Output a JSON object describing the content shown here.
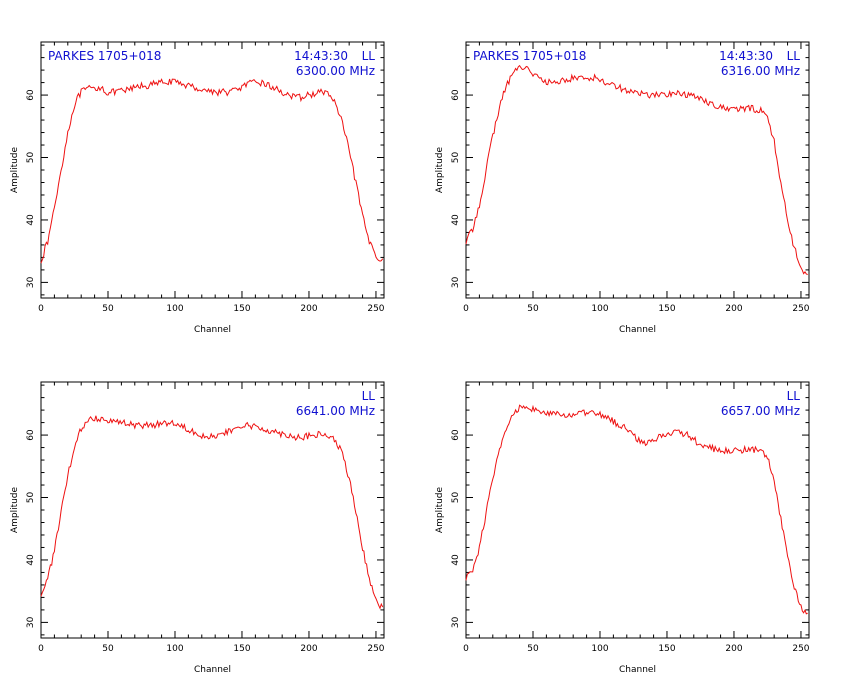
{
  "chart_data": [
    {
      "type": "line",
      "source": "PARKES 1705+018",
      "time": "14:43:30",
      "polarization": "LL",
      "frequency": "6300.00 MHz",
      "xlabel": "Channel",
      "ylabel": "Amplitude",
      "xlim": [
        0,
        256
      ],
      "ylim": [
        27.5,
        68.5
      ],
      "xticks": [
        0,
        50,
        100,
        150,
        200,
        250
      ],
      "yticks": [
        30,
        40,
        50,
        60
      ],
      "color": "#ee1111",
      "x": [
        0,
        5,
        10,
        15,
        20,
        25,
        30,
        35,
        40,
        45,
        50,
        55,
        60,
        65,
        70,
        75,
        80,
        85,
        90,
        95,
        100,
        105,
        110,
        115,
        120,
        125,
        130,
        135,
        140,
        145,
        150,
        155,
        160,
        165,
        170,
        175,
        180,
        185,
        190,
        195,
        200,
        205,
        210,
        215,
        220,
        225,
        230,
        235,
        240,
        245,
        250,
        255
      ],
      "y": [
        33.5,
        36.5,
        42,
        48,
        54,
        58.5,
        60.5,
        61,
        61,
        61.3,
        60.3,
        60.5,
        60.6,
        60.8,
        61.2,
        61.5,
        61.5,
        61.8,
        62,
        62.2,
        62,
        61.9,
        61.5,
        61.2,
        60.9,
        60.7,
        60.5,
        60.5,
        60.5,
        60.8,
        61.3,
        61.8,
        62,
        62,
        61.5,
        61,
        60.5,
        60,
        59.5,
        59.7,
        60,
        60.3,
        60.5,
        60.2,
        58.5,
        55.5,
        51,
        46,
        40.5,
        36.5,
        34.5,
        33.3
      ]
    },
    {
      "type": "line",
      "source": "PARKES 1705+018",
      "time": "14:43:30",
      "polarization": "LL",
      "frequency": "6316.00 MHz",
      "xlabel": "Channel",
      "ylabel": "Amplitude",
      "xlim": [
        0,
        256
      ],
      "ylim": [
        27.5,
        68.5
      ],
      "xticks": [
        0,
        50,
        100,
        150,
        200,
        250
      ],
      "yticks": [
        30,
        40,
        50,
        60
      ],
      "color": "#ee1111",
      "x": [
        0,
        5,
        10,
        15,
        20,
        25,
        30,
        35,
        40,
        45,
        50,
        55,
        60,
        65,
        70,
        75,
        80,
        85,
        90,
        95,
        100,
        105,
        110,
        115,
        120,
        125,
        130,
        135,
        140,
        145,
        150,
        155,
        160,
        165,
        170,
        175,
        180,
        185,
        190,
        195,
        200,
        205,
        210,
        215,
        220,
        225,
        230,
        235,
        240,
        245,
        250,
        255
      ],
      "y": [
        36.5,
        38.5,
        42.5,
        48,
        53.5,
        58,
        61.5,
        63.5,
        64.5,
        64.5,
        63.5,
        62.5,
        62,
        62,
        62.2,
        62.5,
        62.7,
        62.8,
        62.8,
        62.8,
        62.5,
        62,
        61.7,
        61.2,
        60.7,
        60.5,
        60.2,
        60.1,
        60,
        60,
        60.2,
        60.3,
        60.2,
        60,
        59.8,
        59.5,
        59,
        58.5,
        58,
        57.8,
        57.7,
        57.8,
        57.8,
        57.8,
        57.6,
        56.5,
        52.5,
        46,
        40,
        35.5,
        32.5,
        31
      ]
    },
    {
      "type": "line",
      "polarization": "LL",
      "frequency": "6641.00 MHz",
      "xlabel": "Channel",
      "ylabel": "Amplitude",
      "xlim": [
        0,
        256
      ],
      "ylim": [
        27.5,
        68.5
      ],
      "xticks": [
        0,
        50,
        100,
        150,
        200,
        250
      ],
      "yticks": [
        30,
        40,
        50,
        60
      ],
      "color": "#ee1111",
      "x": [
        0,
        5,
        10,
        15,
        20,
        25,
        30,
        35,
        40,
        45,
        50,
        55,
        60,
        65,
        70,
        75,
        80,
        85,
        90,
        95,
        100,
        105,
        110,
        115,
        120,
        125,
        130,
        135,
        140,
        145,
        150,
        155,
        160,
        165,
        170,
        175,
        180,
        185,
        190,
        195,
        200,
        205,
        210,
        215,
        220,
        225,
        230,
        235,
        240,
        245,
        250,
        255
      ],
      "y": [
        34.5,
        37,
        41.5,
        47.5,
        53.5,
        58,
        61,
        62.5,
        62.7,
        62.7,
        62.5,
        62.2,
        62,
        61.8,
        61.6,
        61.5,
        61.5,
        61.7,
        61.9,
        62,
        61.9,
        61.5,
        61,
        60.5,
        60,
        59.8,
        59.8,
        60,
        60.5,
        61,
        61.5,
        61.5,
        61.3,
        61,
        60.8,
        60.5,
        60.2,
        60,
        59.7,
        59.7,
        59.8,
        60,
        60.1,
        59.8,
        59,
        57,
        53,
        47.5,
        42,
        37,
        34,
        32
      ]
    },
    {
      "type": "line",
      "polarization": "LL",
      "frequency": "6657.00 MHz",
      "xlabel": "Channel",
      "ylabel": "Amplitude",
      "xlim": [
        0,
        256
      ],
      "ylim": [
        27.5,
        68.5
      ],
      "xticks": [
        0,
        50,
        100,
        150,
        200,
        250
      ],
      "yticks": [
        30,
        40,
        50,
        60
      ],
      "color": "#ee1111",
      "x": [
        0,
        5,
        10,
        15,
        20,
        25,
        30,
        35,
        40,
        45,
        50,
        55,
        60,
        65,
        70,
        75,
        80,
        85,
        90,
        95,
        100,
        105,
        110,
        115,
        120,
        125,
        130,
        135,
        140,
        145,
        150,
        155,
        160,
        165,
        170,
        175,
        180,
        185,
        190,
        195,
        200,
        205,
        210,
        215,
        220,
        225,
        230,
        235,
        240,
        245,
        250,
        255
      ],
      "y": [
        37,
        38.5,
        42,
        47.5,
        53,
        57.5,
        61,
        63.2,
        64.5,
        64.8,
        64.2,
        63.5,
        63.5,
        63.3,
        63.2,
        63.2,
        63.3,
        63.4,
        63.5,
        63.5,
        63.3,
        62.8,
        62.2,
        61.6,
        61,
        60,
        59,
        58.7,
        59.2,
        59.8,
        60.3,
        60.5,
        60.4,
        60,
        59.3,
        58.5,
        58,
        57.8,
        57.5,
        57.4,
        57.5,
        57.6,
        57.6,
        57.6,
        57.5,
        56.5,
        52.5,
        46.5,
        40.5,
        35.5,
        32.5,
        31
      ]
    }
  ]
}
